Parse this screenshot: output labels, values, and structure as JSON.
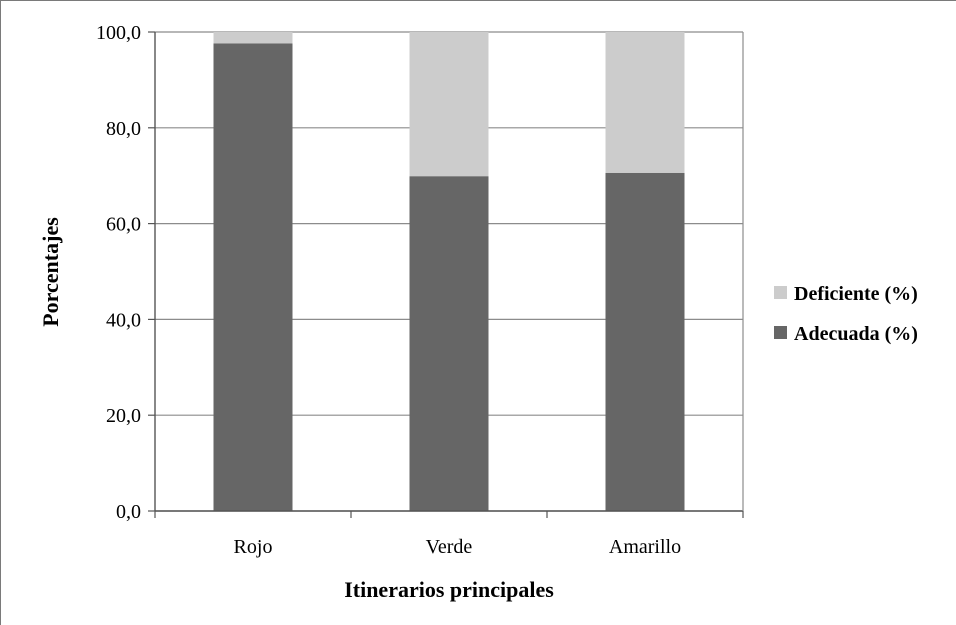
{
  "chart_data": {
    "type": "bar",
    "stacked": true,
    "categories": [
      "Rojo",
      "Verde",
      "Amarillo"
    ],
    "series": [
      {
        "name": "Adecuada (%)",
        "color": "#666666",
        "values": [
          97.6,
          69.9,
          70.6
        ]
      },
      {
        "name": "Deficiente (%)",
        "color": "#cccccc",
        "values": [
          2.4,
          30.1,
          29.4
        ]
      }
    ],
    "xlabel": "Itinerarios principales",
    "ylabel": "Porcentajes",
    "ylim": [
      0,
      100
    ],
    "yticks": [
      "0,0",
      "20,0",
      "40,0",
      "60,0",
      "80,0",
      "100,0"
    ],
    "grid": true,
    "legend_position": "right",
    "legend_order": [
      "Deficiente (%)",
      "Adecuada (%)"
    ]
  }
}
